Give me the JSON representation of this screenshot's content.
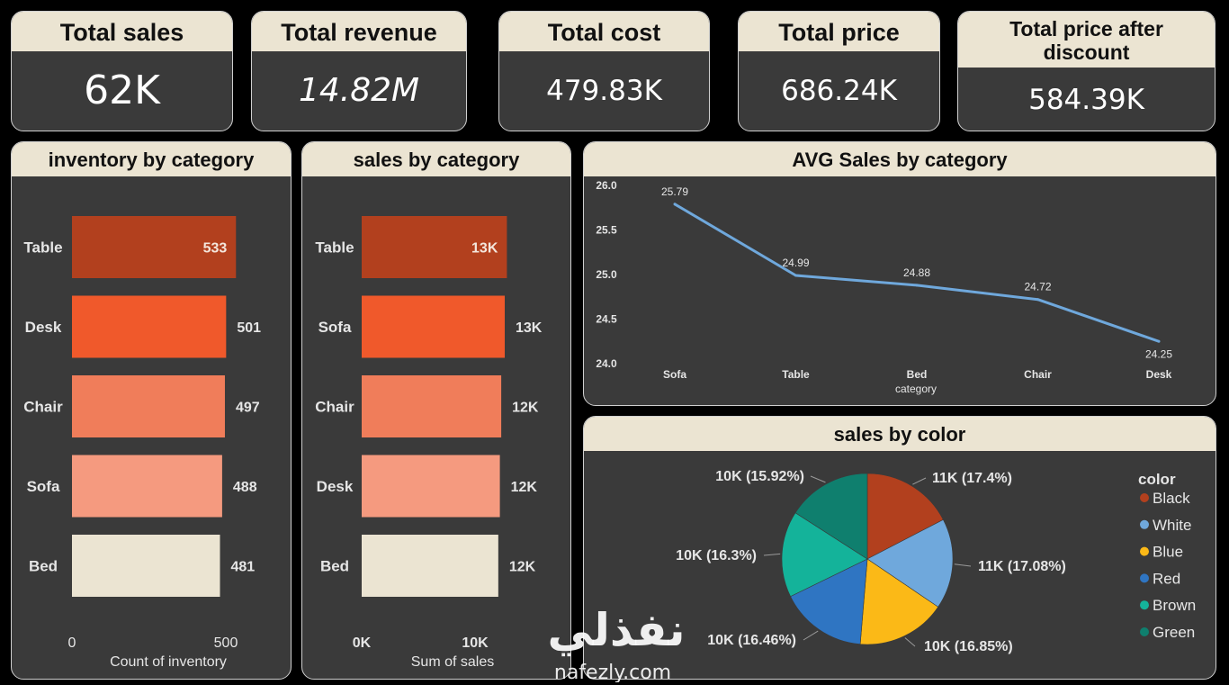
{
  "kpis": {
    "total_sales": {
      "label": "Total sales",
      "value": "62K"
    },
    "total_revenue": {
      "label": "Total revenue",
      "value": "14.82M"
    },
    "total_cost": {
      "label": "Total cost",
      "value": "479.83K"
    },
    "total_price": {
      "label": "Total price",
      "value": "686.24K"
    },
    "total_price_after_discount": {
      "label": "Total price after discount",
      "value": "584.39K"
    }
  },
  "panels": {
    "inventory": {
      "title": "inventory by category"
    },
    "sales_cat": {
      "title": "sales by category"
    },
    "avg": {
      "title": "AVG Sales by category"
    },
    "color": {
      "title": "sales by color"
    }
  },
  "watermark": {
    "arabic": "نفذلي",
    "latin": "nafezly.com"
  },
  "colors": {
    "bg": "#000000",
    "card": "#3a3a3a",
    "header": "#ebe4d2",
    "bar1": "#b2401e",
    "bar2": "#f0592b",
    "bar3": "#f07d5a",
    "bar4": "#f59a7f",
    "bar5": "#ebe4d2",
    "line": "#6fa8dc"
  },
  "chart_data": [
    {
      "id": "inventory",
      "type": "bar",
      "orientation": "horizontal",
      "title": "inventory by category",
      "categories": [
        "Table",
        "Desk",
        "Chair",
        "Sofa",
        "Bed"
      ],
      "values": [
        533,
        501,
        497,
        488,
        481
      ],
      "data_labels": [
        "533",
        "501",
        "497",
        "488",
        "481"
      ],
      "bar_colors": [
        "#b2401e",
        "#f0592b",
        "#f07d5a",
        "#f59a7f",
        "#ebe4d2"
      ],
      "xlabel": "Count of inventory",
      "xticks": [
        "0",
        "500"
      ],
      "xtick_values": [
        0,
        500
      ],
      "xlim": [
        0,
        500
      ]
    },
    {
      "id": "sales_cat",
      "type": "bar",
      "orientation": "horizontal",
      "title": "sales by category",
      "categories": [
        "Table",
        "Sofa",
        "Chair",
        "Desk",
        "Bed"
      ],
      "values": [
        12810,
        12620,
        12310,
        12190,
        12050
      ],
      "data_labels": [
        "13K",
        "13K",
        "12K",
        "12K",
        "12K"
      ],
      "bar_colors": [
        "#b2401e",
        "#f0592b",
        "#f07d5a",
        "#f59a7f",
        "#ebe4d2"
      ],
      "xlabel": "Sum of sales",
      "xticks": [
        "0K",
        "10K"
      ],
      "xtick_values": [
        0,
        10000
      ],
      "xlim": [
        0,
        10000
      ]
    },
    {
      "id": "avg",
      "type": "line",
      "title": "AVG Sales by category",
      "categories": [
        "Sofa",
        "Table",
        "Bed",
        "Chair",
        "Desk"
      ],
      "values": [
        25.79,
        24.99,
        24.88,
        24.72,
        24.25
      ],
      "data_labels": [
        "25.79",
        "24.99",
        "24.88",
        "24.72",
        "24.25"
      ],
      "xlabel": "category",
      "yticks": [
        "26.0",
        "25.5",
        "25.0",
        "24.5",
        "24.0"
      ],
      "ytick_values": [
        26.0,
        25.5,
        25.0,
        24.5,
        24.0
      ],
      "ylim": [
        24.0,
        26.0
      ],
      "color": "#6fa8dc"
    },
    {
      "id": "color",
      "type": "pie",
      "title": "sales by color",
      "legend_title": "color",
      "legend_position": "right",
      "slices": [
        {
          "label": "Black",
          "value": 17.4,
          "data_label": "11K (17.4%)",
          "color": "#b2401e"
        },
        {
          "label": "White",
          "value": 17.08,
          "data_label": "11K (17.08%)",
          "color": "#6fa8dc"
        },
        {
          "label": "Blue",
          "value": 16.85,
          "data_label": "10K (16.85%)",
          "color": "#fbb917"
        },
        {
          "label": "Red",
          "value": 16.46,
          "data_label": "10K (16.46%)",
          "color": "#2f75c2"
        },
        {
          "label": "Brown",
          "value": 16.3,
          "data_label": "10K (16.3%)",
          "color": "#14b39a"
        },
        {
          "label": "Green",
          "value": 15.92,
          "data_label": "10K (15.92%)",
          "color": "#0f7f6e"
        }
      ]
    }
  ]
}
